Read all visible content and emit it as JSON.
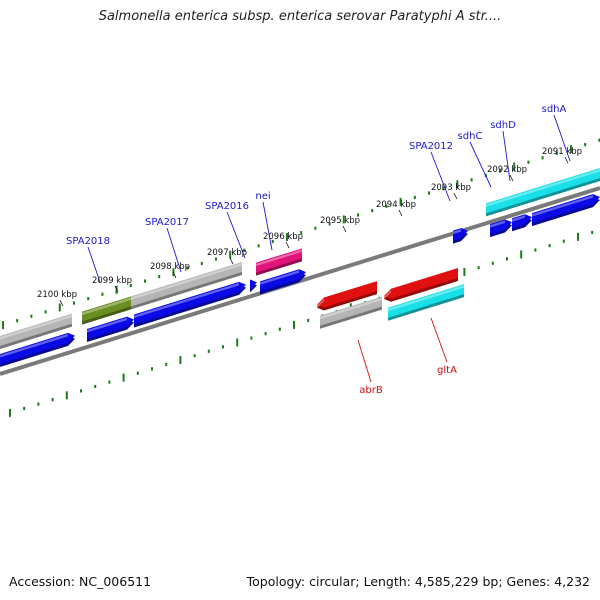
{
  "title": "Salmonella enterica subsp. enterica serovar Paratyphi A str....",
  "footer": {
    "accession": "Accession: NC_006511",
    "summary": "Topology: circular; Length: 4,585,229 bp; Genes: 4,232"
  },
  "colors": {
    "backbone": "#7a7a7a",
    "tick": "#1f7a1f",
    "blue_gene": "#0a0ae6",
    "grey_gene": "#b5b5b5",
    "olive_gene": "#6b8e23",
    "magenta_gene": "#e0147a",
    "red_gene": "#e01010",
    "cyan_gene": "#19e0e8",
    "forward_label": "#1a1acc",
    "reverse_label": "#cc1010"
  },
  "scale_labels": [
    "2100 kbp",
    "2099 kbp",
    "2098 kbp",
    "2097 kbp",
    "2096 kbp",
    "2095 kbp",
    "2094 kbp",
    "2093 kbp",
    "2092 kbp",
    "2091 kbp"
  ],
  "gene_labels": {
    "forward": [
      "SPA2018",
      "SPA2017",
      "SPA2016",
      "nei",
      "SPA2012",
      "sdhC",
      "sdhD",
      "sdhA"
    ],
    "reverse": [
      "abrB",
      "gltA"
    ]
  }
}
